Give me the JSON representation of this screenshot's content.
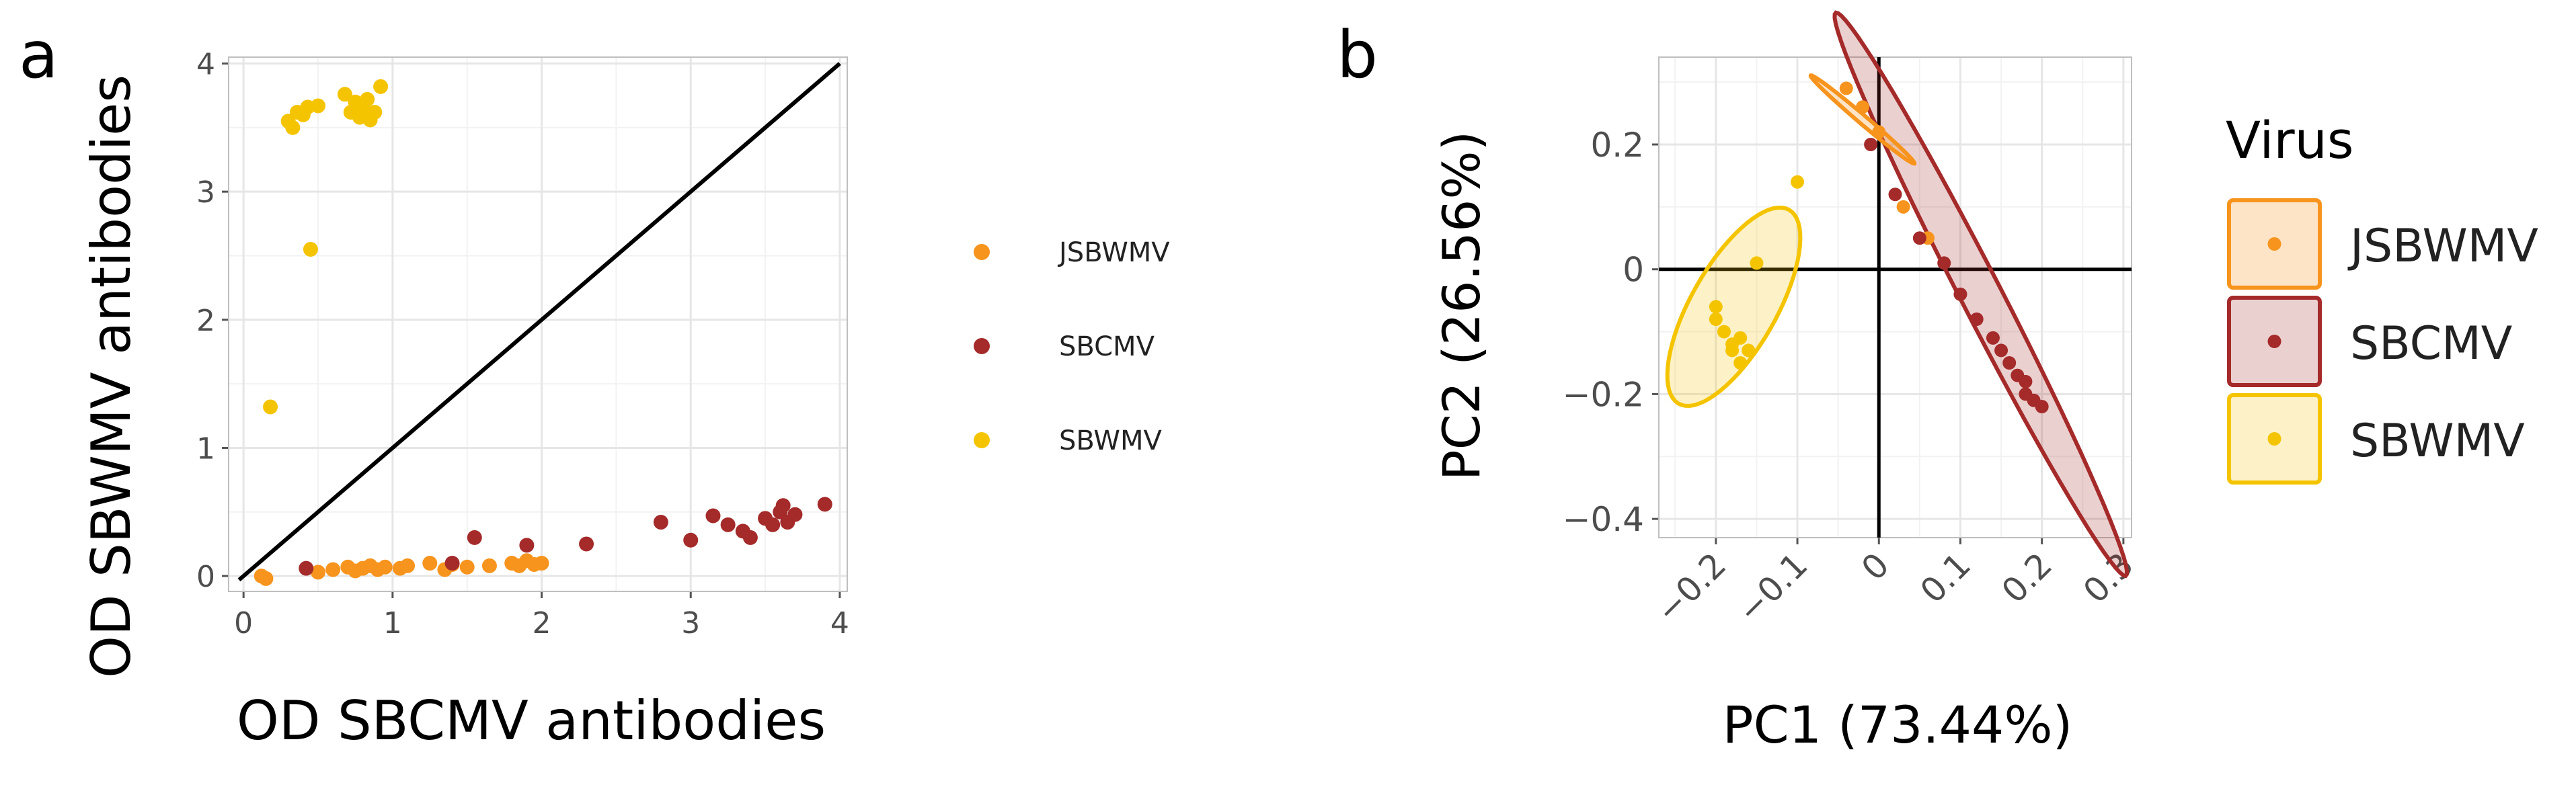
{
  "panel_labels": [
    "a",
    "b"
  ],
  "colors": {
    "JSBWMV": "#f7941d",
    "SBCMV": "#a52a2a",
    "SBWMV": "#f5c400",
    "panel_bg": "#ffffff",
    "grid": "#e6e6e6",
    "frame": "#bfbfbf"
  },
  "chart_data": [
    {
      "type": "scatter",
      "panel": "a",
      "title": "",
      "xlabel": "OD SBCMV antibodies",
      "ylabel": "OD SBWMV antibodies",
      "xlim": [
        -0.1,
        4.05
      ],
      "ylim": [
        -0.12,
        4.05
      ],
      "xticks": [
        0,
        1,
        2,
        3,
        4
      ],
      "yticks": [
        0,
        1,
        2,
        3,
        4
      ],
      "grid": true,
      "reference_line": {
        "from": [
          -0.03,
          -0.03
        ],
        "to": [
          4.0,
          4.0
        ]
      },
      "legend": {
        "position": "right"
      },
      "series": [
        {
          "name": "JSBWMV",
          "points": [
            [
              0.12,
              0.0
            ],
            [
              0.15,
              -0.02
            ],
            [
              0.5,
              0.03
            ],
            [
              0.6,
              0.05
            ],
            [
              0.7,
              0.07
            ],
            [
              0.75,
              0.04
            ],
            [
              0.8,
              0.06
            ],
            [
              0.85,
              0.08
            ],
            [
              0.9,
              0.05
            ],
            [
              0.95,
              0.07
            ],
            [
              1.05,
              0.06
            ],
            [
              1.1,
              0.08
            ],
            [
              1.25,
              0.1
            ],
            [
              1.35,
              0.05
            ],
            [
              1.4,
              0.09
            ],
            [
              1.5,
              0.07
            ],
            [
              1.65,
              0.08
            ],
            [
              1.8,
              0.1
            ],
            [
              1.85,
              0.08
            ],
            [
              1.9,
              0.12
            ],
            [
              1.95,
              0.09
            ],
            [
              2.0,
              0.1
            ]
          ]
        },
        {
          "name": "SBCMV",
          "points": [
            [
              0.42,
              0.06
            ],
            [
              1.4,
              0.1
            ],
            [
              1.55,
              0.3
            ],
            [
              1.9,
              0.24
            ],
            [
              2.3,
              0.25
            ],
            [
              2.8,
              0.42
            ],
            [
              3.0,
              0.28
            ],
            [
              3.15,
              0.47
            ],
            [
              3.25,
              0.4
            ],
            [
              3.35,
              0.35
            ],
            [
              3.4,
              0.3
            ],
            [
              3.5,
              0.45
            ],
            [
              3.55,
              0.4
            ],
            [
              3.6,
              0.5
            ],
            [
              3.62,
              0.55
            ],
            [
              3.65,
              0.42
            ],
            [
              3.7,
              0.48
            ],
            [
              3.9,
              0.56
            ]
          ]
        },
        {
          "name": "SBWMV",
          "points": [
            [
              0.18,
              1.32
            ],
            [
              0.3,
              3.55
            ],
            [
              0.33,
              3.5
            ],
            [
              0.36,
              3.62
            ],
            [
              0.4,
              3.6
            ],
            [
              0.43,
              3.66
            ],
            [
              0.45,
              2.55
            ],
            [
              0.5,
              3.67
            ],
            [
              0.68,
              3.76
            ],
            [
              0.72,
              3.62
            ],
            [
              0.75,
              3.7
            ],
            [
              0.78,
              3.58
            ],
            [
              0.8,
              3.65
            ],
            [
              0.83,
              3.72
            ],
            [
              0.85,
              3.56
            ],
            [
              0.88,
              3.62
            ],
            [
              0.92,
              3.82
            ]
          ]
        }
      ]
    },
    {
      "type": "scatter",
      "panel": "b",
      "title": "",
      "xlabel": "PC1 (73.44%)",
      "ylabel": "PC2 (26.56%)",
      "xlim": [
        -0.27,
        0.31
      ],
      "ylim": [
        -0.43,
        0.34
      ],
      "xticks": [
        -0.2,
        -0.1,
        0,
        0.1,
        0.2,
        0.3
      ],
      "xtick_labels": [
        "−0.2",
        "−0.1",
        "0",
        "0.1",
        "0.2",
        "0.3"
      ],
      "yticks": [
        0.2,
        0,
        -0.2,
        -0.4
      ],
      "ytick_labels": [
        "0.2",
        "0",
        "−0.2",
        "−0.4"
      ],
      "grid": true,
      "zero_lines": true,
      "legend": {
        "title": "Virus",
        "position": "right",
        "entries": [
          "JSBWMV",
          "SBCMV",
          "SBWMV"
        ]
      },
      "series": [
        {
          "name": "JSBWMV",
          "points": [
            [
              -0.04,
              0.29
            ],
            [
              -0.02,
              0.26
            ],
            [
              0.0,
              0.22
            ],
            [
              0.03,
              0.1
            ],
            [
              0.06,
              0.05
            ]
          ],
          "ellipse": {
            "center": [
              -0.02,
              0.24
            ],
            "semi_major": 0.095,
            "semi_minor": 0.006,
            "angle_deg": -48
          }
        },
        {
          "name": "SBCMV",
          "points": [
            [
              -0.01,
              0.2
            ],
            [
              0.02,
              0.12
            ],
            [
              0.05,
              0.05
            ],
            [
              0.08,
              0.01
            ],
            [
              0.1,
              -0.04
            ],
            [
              0.12,
              -0.08
            ],
            [
              0.14,
              -0.11
            ],
            [
              0.15,
              -0.13
            ],
            [
              0.16,
              -0.15
            ],
            [
              0.17,
              -0.17
            ],
            [
              0.18,
              -0.18
            ],
            [
              0.18,
              -0.2
            ],
            [
              0.19,
              -0.21
            ],
            [
              0.2,
              -0.22
            ]
          ],
          "ellipse": {
            "center": [
              0.125,
              -0.04
            ],
            "semi_major": 0.485,
            "semi_minor": 0.026,
            "angle_deg": -68.5
          }
        },
        {
          "name": "SBWMV",
          "points": [
            [
              -0.1,
              0.14
            ],
            [
              -0.15,
              0.01
            ],
            [
              -0.2,
              -0.06
            ],
            [
              -0.2,
              -0.08
            ],
            [
              -0.19,
              -0.1
            ],
            [
              -0.18,
              -0.12
            ],
            [
              -0.17,
              -0.11
            ],
            [
              -0.16,
              -0.13
            ],
            [
              -0.17,
              -0.15
            ],
            [
              -0.18,
              -0.13
            ]
          ],
          "ellipse": {
            "center": [
              -0.178,
              -0.06
            ],
            "semi_major": 0.17,
            "semi_minor": 0.055,
            "angle_deg": 68
          }
        }
      ]
    }
  ]
}
